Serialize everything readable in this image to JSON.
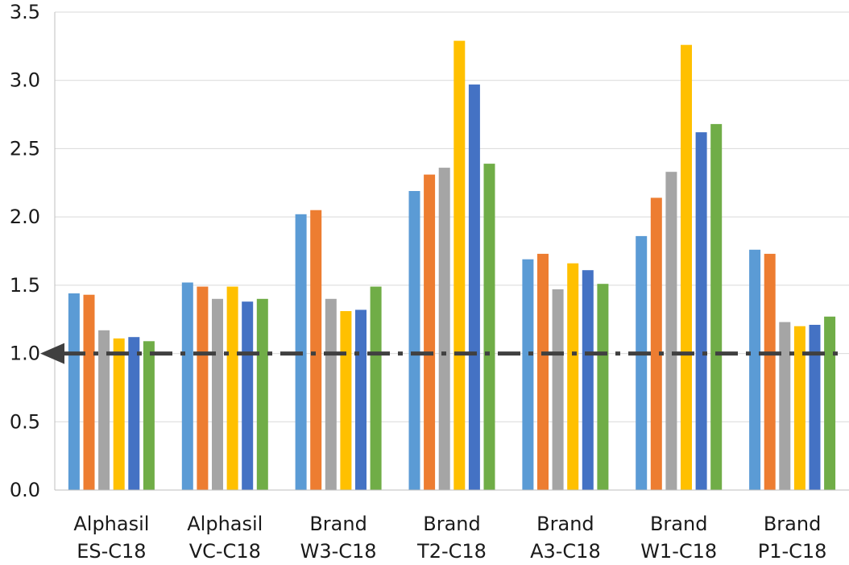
{
  "chart_data": {
    "type": "bar",
    "categories": [
      [
        "Alphasil",
        "ES-C18"
      ],
      [
        "Alphasil",
        "VC-C18"
      ],
      [
        "Brand",
        "W3-C18"
      ],
      [
        "Brand",
        "T2-C18"
      ],
      [
        "Brand",
        "A3-C18"
      ],
      [
        "Brand",
        "W1-C18"
      ],
      [
        "Brand",
        "P1-C18"
      ]
    ],
    "series": [
      {
        "color": "#5B9BD5",
        "values": [
          1.44,
          1.52,
          2.02,
          2.19,
          1.69,
          1.86,
          1.76
        ]
      },
      {
        "color": "#ED7D31",
        "values": [
          1.43,
          1.49,
          2.05,
          2.31,
          1.73,
          2.14,
          1.73
        ]
      },
      {
        "color": "#A5A5A5",
        "values": [
          1.17,
          1.4,
          1.4,
          2.36,
          1.47,
          2.33,
          1.23
        ]
      },
      {
        "color": "#FFC000",
        "values": [
          1.11,
          1.49,
          1.31,
          3.29,
          1.66,
          3.26,
          1.2
        ]
      },
      {
        "color": "#4472C4",
        "values": [
          1.12,
          1.38,
          1.32,
          2.97,
          1.61,
          2.62,
          1.21
        ]
      },
      {
        "color": "#70AD47",
        "values": [
          1.09,
          1.4,
          1.49,
          2.39,
          1.51,
          2.68,
          1.27
        ]
      }
    ],
    "y_ticks": [
      "0.0",
      "0.5",
      "1.0",
      "1.5",
      "2.0",
      "2.5",
      "3.0",
      "3.5"
    ],
    "ylim": [
      0,
      3.5
    ],
    "grid": true,
    "reference_line": {
      "y": 1.0,
      "style": "dash-dot",
      "color": "#404040",
      "arrow": "left"
    },
    "legend": "none"
  }
}
